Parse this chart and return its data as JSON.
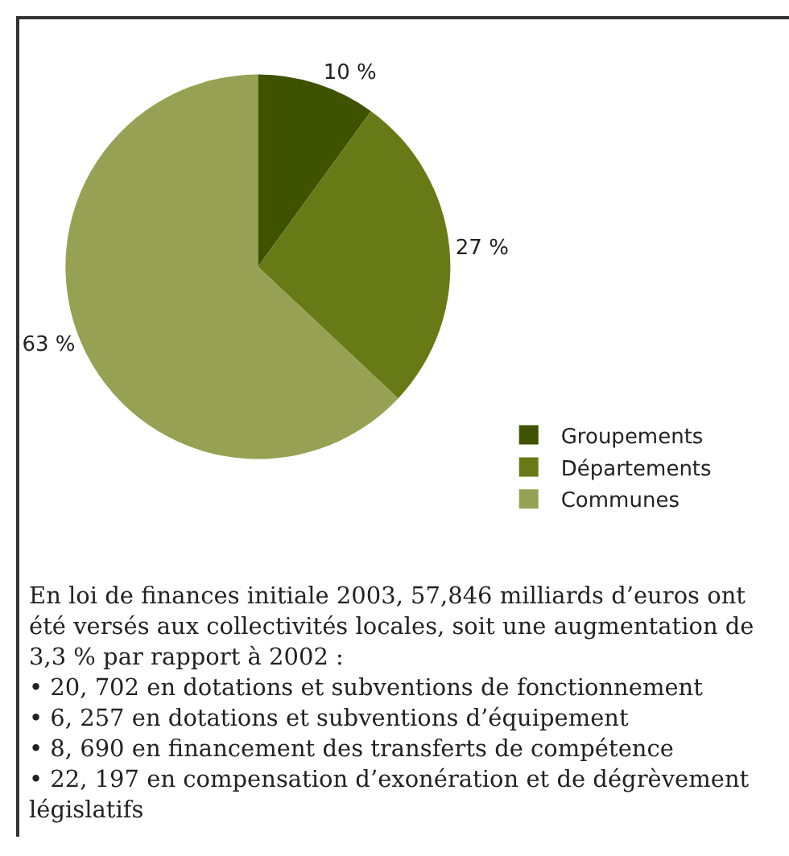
{
  "chart_data": {
    "type": "pie",
    "categories": [
      "Groupements",
      "Départements",
      "Communes"
    ],
    "values": [
      10,
      27,
      63
    ],
    "colors": [
      "#3f5200",
      "#687a16",
      "#97a153"
    ],
    "value_labels": [
      "10 %",
      "27 %",
      "63 %"
    ],
    "legend": "bottom right",
    "annotations": [
      "En loi de finances initiale 2003, 57,846 milliards d’euros ont été versés aux collectivités locales, soit une augmentation de 3,3 % par rapport à 2002 :",
      "• 20, 702 en dotations et subventions de fonctionnement",
      "• 6, 257 en dotations et subventions d’équipement",
      "• 8, 690 en financement des transferts de compétence",
      "• 22, 197 en compensation d’exonération et de dégrèvement législatifs"
    ]
  }
}
